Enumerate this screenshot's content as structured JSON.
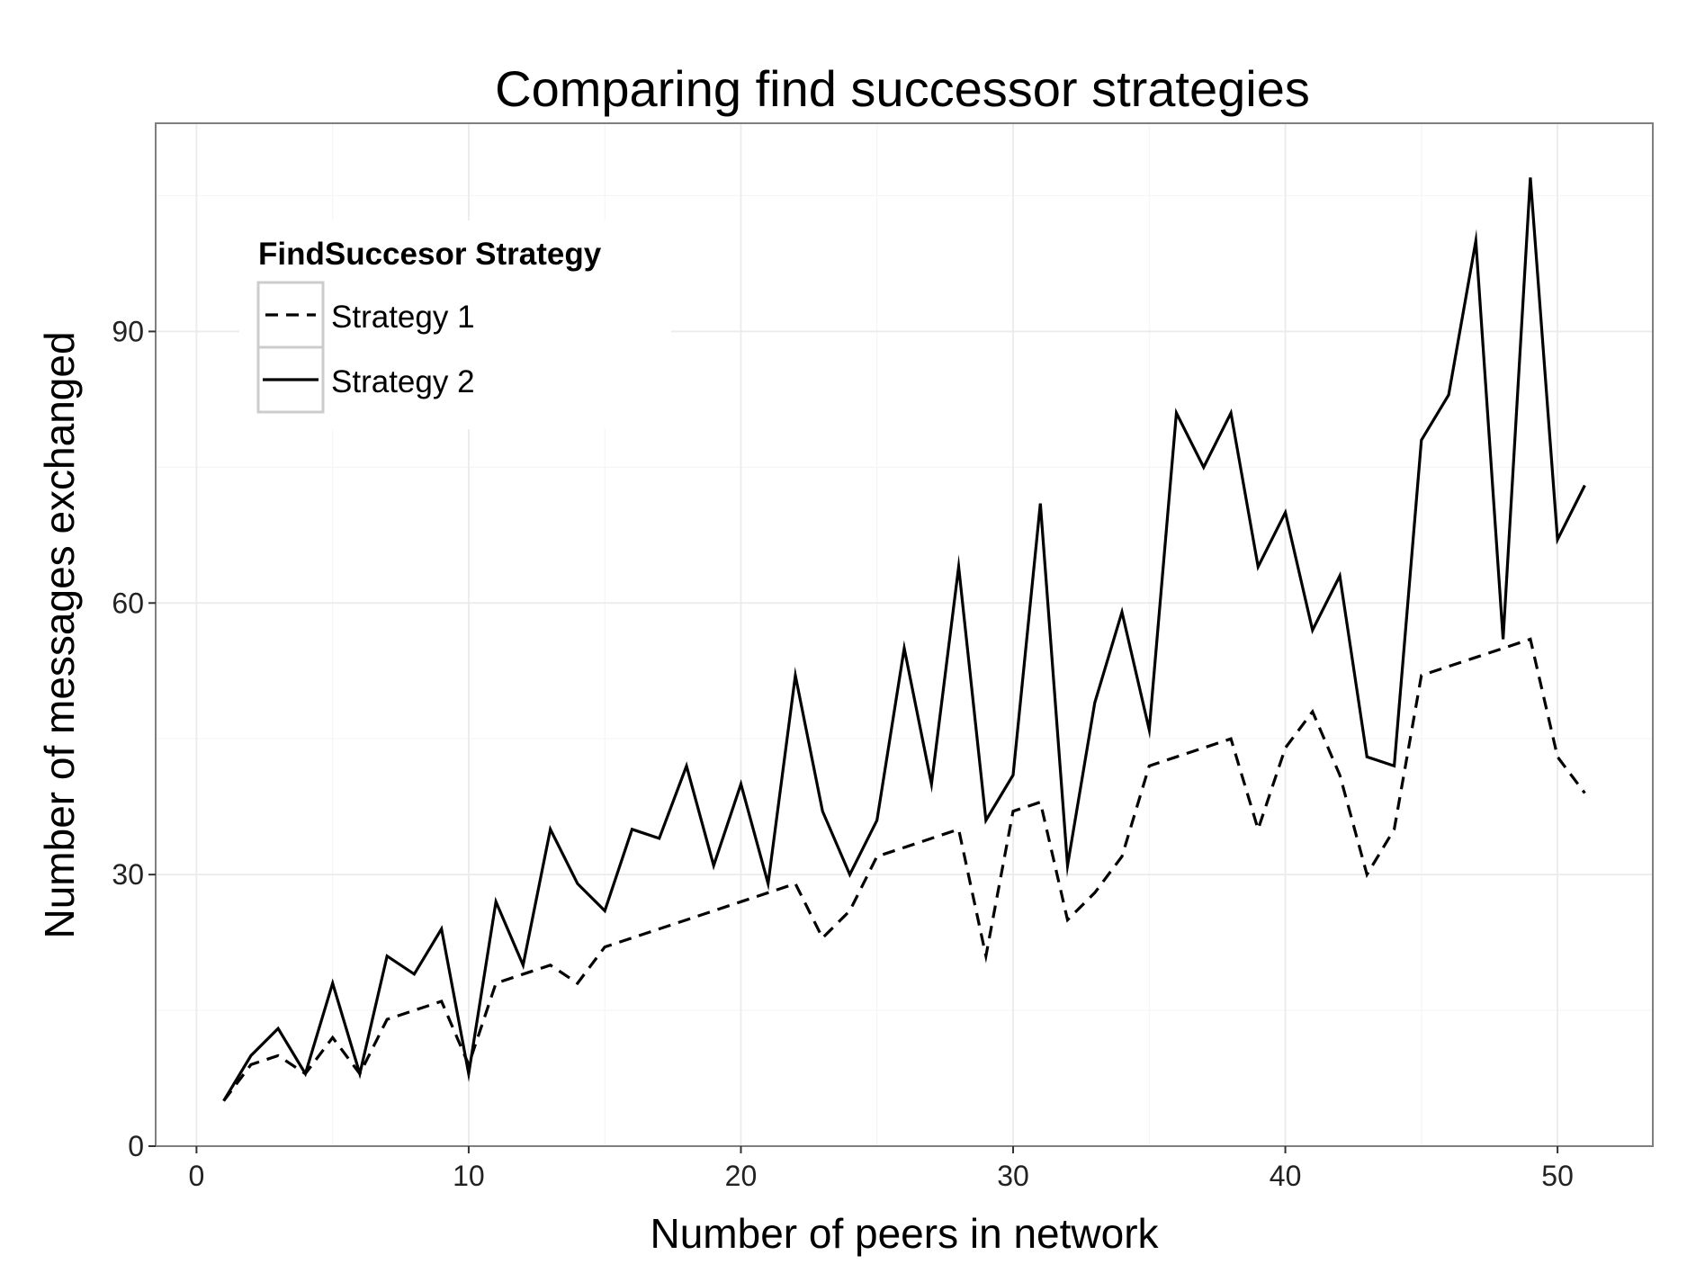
{
  "chart_data": {
    "type": "line",
    "title": "Comparing find successor strategies",
    "xlabel": "Number of peers in network",
    "ylabel": "Number of messages exchanged",
    "xlim": [
      -1.5,
      53.5
    ],
    "ylim": [
      0,
      113
    ],
    "x_ticks": [
      0,
      10,
      20,
      30,
      40,
      50
    ],
    "y_ticks": [
      0,
      30,
      60,
      90
    ],
    "grid": true,
    "legend": {
      "title": "FindSuccesor Strategy",
      "position": "top-left"
    },
    "x": [
      1,
      2,
      3,
      4,
      5,
      6,
      7,
      8,
      9,
      10,
      11,
      12,
      13,
      14,
      15,
      16,
      17,
      18,
      19,
      20,
      21,
      22,
      23,
      24,
      25,
      26,
      27,
      28,
      29,
      30,
      31,
      32,
      33,
      34,
      35,
      36,
      37,
      38,
      39,
      40,
      41,
      42,
      43,
      44,
      45,
      46,
      47,
      48,
      49,
      50,
      51
    ],
    "series": [
      {
        "name": "Strategy 1",
        "line_style": "dashed",
        "color": "#000000",
        "values": [
          5,
          9,
          10,
          8,
          12,
          8,
          14,
          15,
          16,
          9,
          18,
          19,
          20,
          18,
          22,
          23,
          24,
          25,
          26,
          27,
          28,
          29,
          23,
          26,
          32,
          33,
          34,
          35,
          21,
          37,
          38,
          25,
          28,
          32,
          42,
          43,
          44,
          45,
          35,
          44,
          48,
          41,
          30,
          35,
          52,
          53,
          54,
          55,
          56,
          43,
          39
        ]
      },
      {
        "name": "Strategy 2",
        "line_style": "solid",
        "color": "#000000",
        "values": [
          5,
          10,
          13,
          8,
          18,
          8,
          21,
          19,
          24,
          8,
          27,
          20,
          35,
          29,
          26,
          35,
          34,
          42,
          31,
          40,
          29,
          52,
          37,
          30,
          36,
          55,
          40,
          64,
          36,
          41,
          71,
          31,
          49,
          59,
          46,
          81,
          75,
          81,
          64,
          70,
          57,
          63,
          43,
          42,
          78,
          83,
          100,
          56,
          107,
          67,
          73
        ]
      }
    ]
  }
}
